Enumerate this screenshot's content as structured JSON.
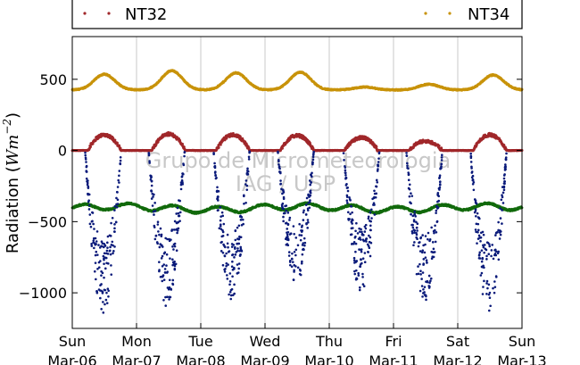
{
  "chart_data": {
    "type": "scatter",
    "ylabel_text": "Radiation (",
    "ylabel_math": "Wm",
    "ylabel_exp": "−2",
    "ylabel_close": ")",
    "ylim": [
      -1250,
      800
    ],
    "y_ticks": [
      500,
      0,
      -500,
      -1000
    ],
    "y_tick_labels": [
      "500",
      "0",
      "−500",
      "−1000"
    ],
    "xlim": [
      0,
      7
    ],
    "x_ticks": [
      0,
      1,
      2,
      3,
      4,
      5,
      6,
      7
    ],
    "x_tick_labels_day": [
      "Sun",
      "Mon",
      "Tue",
      "Wed",
      "Thu",
      "Fri",
      "Sat",
      "Sun"
    ],
    "x_tick_labels_date": [
      "Mar-06",
      "Mar-07",
      "Mar-08",
      "Mar-09",
      "Mar-10",
      "Mar-11",
      "Mar-12",
      "Mar-13"
    ],
    "grid": "vertical",
    "legend": {
      "placement": "top",
      "entries": [
        {
          "label": "NT32",
          "color": "#a0272a"
        },
        {
          "label": "NT34",
          "color": "#c8930a"
        }
      ]
    },
    "series": [
      {
        "name": "NT32",
        "color": "#a0272a"
      },
      {
        "name": "NT34",
        "color": "#c8930a"
      },
      {
        "color": "#0a1a7a"
      },
      {
        "color": "#126a0c"
      }
    ],
    "series_profiles": {
      "upper_base": 425,
      "upper_peaks": [
        [
          0.5,
          535
        ],
        [
          1.55,
          560
        ],
        [
          2.55,
          545
        ],
        [
          3.55,
          550
        ],
        [
          4.55,
          445
        ],
        [
          5.55,
          465
        ],
        [
          6.55,
          530
        ]
      ],
      "middle_peaks": [
        [
          0.5,
          110
        ],
        [
          1.5,
          115
        ],
        [
          2.5,
          110
        ],
        [
          3.5,
          105
        ],
        [
          4.5,
          90
        ],
        [
          5.5,
          65
        ],
        [
          6.5,
          110
        ]
      ],
      "lower_baseline": -405,
      "bottom_dips": [
        [
          0.48,
          -1150
        ],
        [
          1.47,
          -1100
        ],
        [
          2.48,
          -1050
        ],
        [
          3.48,
          -950
        ],
        [
          4.5,
          -1000
        ],
        [
          5.48,
          -1070
        ],
        [
          6.48,
          -1150
        ]
      ]
    },
    "watermark": [
      "Grupo de Micrometeorologia",
      "IAG / USP"
    ]
  }
}
